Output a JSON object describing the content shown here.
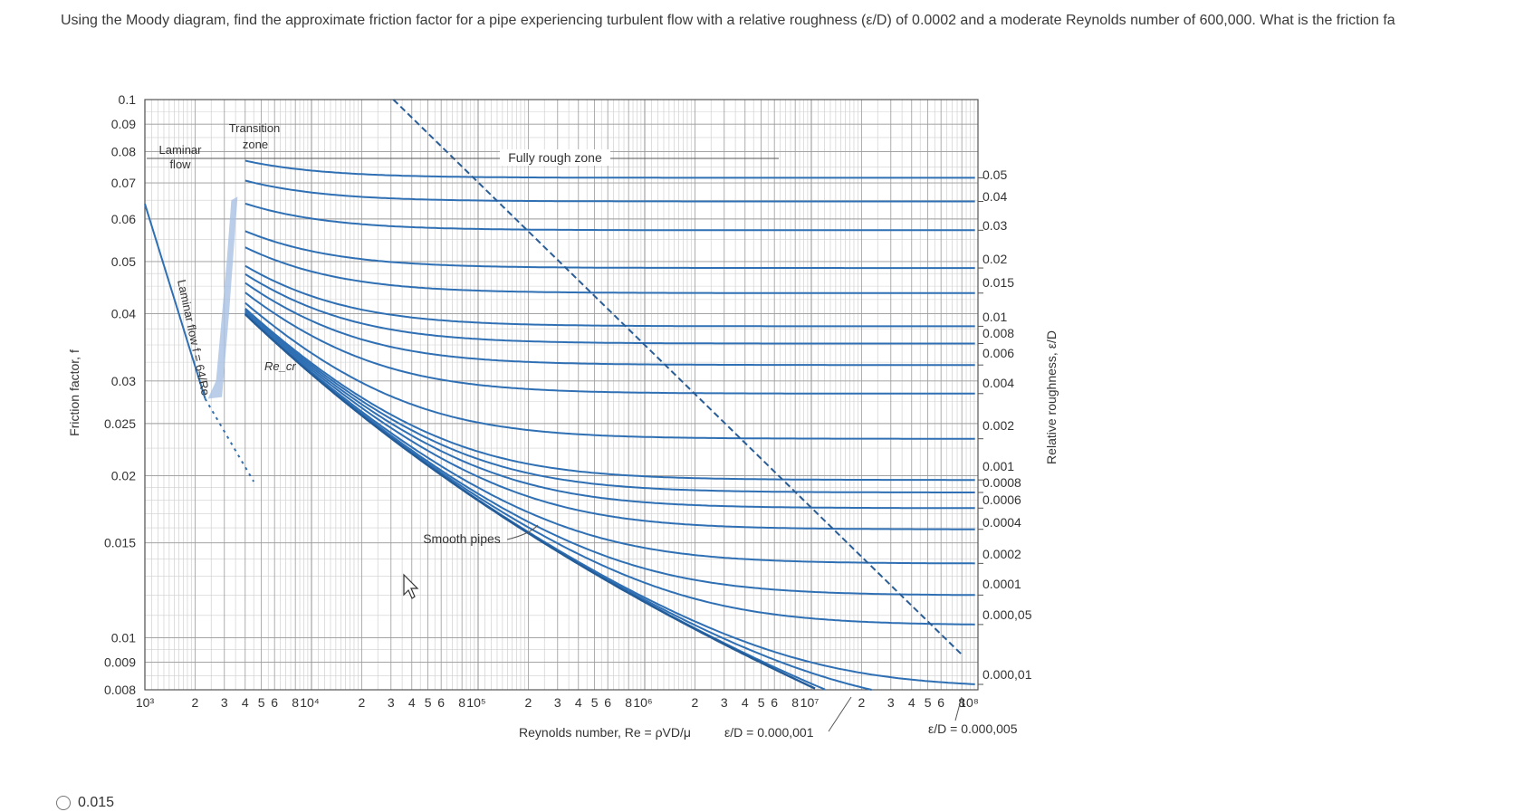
{
  "question": "Using the Moody diagram, find the approximate friction factor for a pipe experiencing turbulent flow with a relative roughness (ε/D) of 0.0002 and a moderate Reynolds number of 600,000. What is the friction fa",
  "answer_option": "0.015",
  "chart_data": {
    "type": "line",
    "xlabel": "Reynolds number, Re = ρVD/μ",
    "ylabel": "Friction factor, f",
    "y2label": "Relative roughness, ε/D",
    "x_scale": "log",
    "y_scale": "log",
    "xlim": [
      1000,
      100000000
    ],
    "ylim": [
      0.008,
      0.1
    ],
    "grid": true,
    "y_ticks": [
      "0.1",
      "0.09",
      "0.08",
      "0.07",
      "0.06",
      "0.05",
      "0.04",
      "0.03",
      "0.025",
      "0.02",
      "0.015",
      "0.01",
      "0.009",
      "0.008"
    ],
    "x_tick_groups": [
      {
        "decade": "10³",
        "minor": [
          "2",
          "3",
          "4",
          "5",
          "6",
          "8"
        ]
      },
      {
        "decade": "10⁴",
        "minor": [
          "2",
          "3",
          "4",
          "5",
          "6",
          "8"
        ]
      },
      {
        "decade": "10⁵",
        "minor": [
          "2",
          "3",
          "4",
          "5",
          "6",
          "8"
        ]
      },
      {
        "decade": "10⁶",
        "minor": [
          "2",
          "3",
          "4",
          "5",
          "6",
          "8"
        ]
      },
      {
        "decade": "10⁷",
        "minor": [
          "2",
          "3",
          "4",
          "5",
          "6",
          "8"
        ]
      },
      {
        "decade": "10⁸",
        "minor": []
      }
    ],
    "roughness_labels": [
      "0.05",
      "0.04",
      "0.03",
      "0.02",
      "0.015",
      "0.01",
      "0.008",
      "0.006",
      "0.004",
      "0.002",
      "0.001",
      "0.0008",
      "0.0006",
      "0.0004",
      "0.0002",
      "0.0001",
      "0.000,05",
      "0.000,01"
    ],
    "roughness_values": [
      0.05,
      0.04,
      0.03,
      0.02,
      0.015,
      0.01,
      0.008,
      0.006,
      0.004,
      0.002,
      0.001,
      0.0008,
      0.0006,
      0.0004,
      0.0002,
      0.0001,
      5e-05,
      1e-05
    ],
    "bottom_annotations": [
      "ε/D = 0.000,001",
      "ε/D = 0.000,005"
    ],
    "bottom_annotation_values": [
      1e-06,
      5e-06
    ],
    "zone_labels": {
      "laminar": "Laminar flow",
      "transition": "Transition zone",
      "fully_rough": "Fully rough zone",
      "smooth": "Smooth pipes",
      "laminar_eq": "Laminar flow f = 64/Re",
      "re_cr": "Re_cr"
    },
    "laminar_line": {
      "formula": "f = 64/Re",
      "x": [
        1000,
        2300
      ],
      "y": [
        0.064,
        0.0278
      ]
    }
  }
}
